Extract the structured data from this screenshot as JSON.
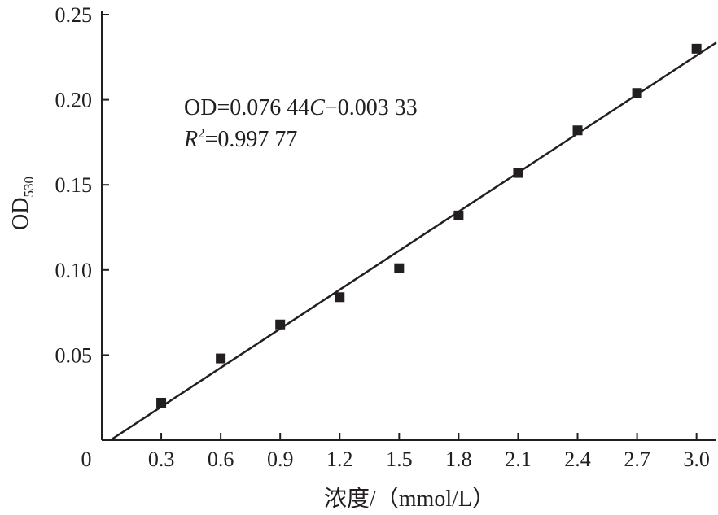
{
  "chart_data": {
    "type": "scatter",
    "xlabel": "浓度/（mmol/L）",
    "ylabel": "OD",
    "ylabel_sub": "530",
    "x_origin_label": "0",
    "xlim": [
      0,
      3.1
    ],
    "ylim": [
      0,
      0.25
    ],
    "x_ticks": [
      {
        "value": 0.3,
        "label": "0.3"
      },
      {
        "value": 0.6,
        "label": "0.6"
      },
      {
        "value": 0.9,
        "label": "0.9"
      },
      {
        "value": 1.2,
        "label": "1.2"
      },
      {
        "value": 1.5,
        "label": "1.5"
      },
      {
        "value": 1.8,
        "label": "1.8"
      },
      {
        "value": 2.1,
        "label": "2.1"
      },
      {
        "value": 2.4,
        "label": "2.4"
      },
      {
        "value": 2.7,
        "label": "2.7"
      },
      {
        "value": 3.0,
        "label": "3.0"
      }
    ],
    "y_ticks": [
      {
        "value": 0.05,
        "label": "0.05"
      },
      {
        "value": 0.1,
        "label": "0.10"
      },
      {
        "value": 0.15,
        "label": "0.15"
      },
      {
        "value": 0.2,
        "label": "0.20"
      },
      {
        "value": 0.25,
        "label": "0.25"
      }
    ],
    "points": [
      {
        "x": 0.3,
        "y": 0.022
      },
      {
        "x": 0.6,
        "y": 0.048
      },
      {
        "x": 0.9,
        "y": 0.068
      },
      {
        "x": 1.2,
        "y": 0.084
      },
      {
        "x": 1.5,
        "y": 0.101
      },
      {
        "x": 1.8,
        "y": 0.132
      },
      {
        "x": 2.1,
        "y": 0.157
      },
      {
        "x": 2.4,
        "y": 0.182
      },
      {
        "x": 2.7,
        "y": 0.204
      },
      {
        "x": 3.0,
        "y": 0.23
      }
    ],
    "fit": {
      "slope": 0.07644,
      "intercept": -0.00333,
      "x_start": 0.0436,
      "x_end": 3.1
    },
    "equation": {
      "prefix": "OD=0.076 44",
      "variable": "C",
      "suffix": "−0.003 33"
    },
    "r_squared": {
      "symbol": "R",
      "exponent": "2",
      "value_text": "=0.997 77"
    },
    "colors": {
      "marker": "#231f20",
      "line": "#231f20",
      "axis": "#231f20"
    }
  }
}
